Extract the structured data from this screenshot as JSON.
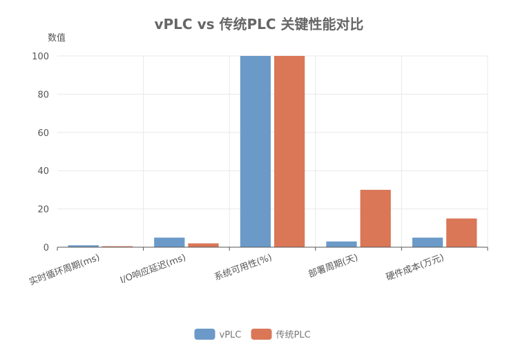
{
  "chart_data": {
    "type": "bar",
    "title": "vPLC vs 传统PLC 关键性能对比",
    "xlabel": "",
    "ylabel": "数值",
    "ylim": [
      0,
      100
    ],
    "yticks": [
      0,
      20,
      40,
      60,
      80,
      100
    ],
    "grid": true,
    "legend_position": "bottom",
    "categories": [
      "实时循环周期(ms)",
      "I/O响应延迟(ms)",
      "系统可用性(%)",
      "部署周期(天)",
      "硬件成本(万元)"
    ],
    "series": [
      {
        "name": "vPLC",
        "color": "#6b9ac9",
        "values": [
          1,
          5,
          100,
          3,
          5
        ]
      },
      {
        "name": "传统PLC",
        "color": "#d97757",
        "values": [
          0.5,
          2,
          100,
          30,
          15
        ]
      }
    ]
  }
}
